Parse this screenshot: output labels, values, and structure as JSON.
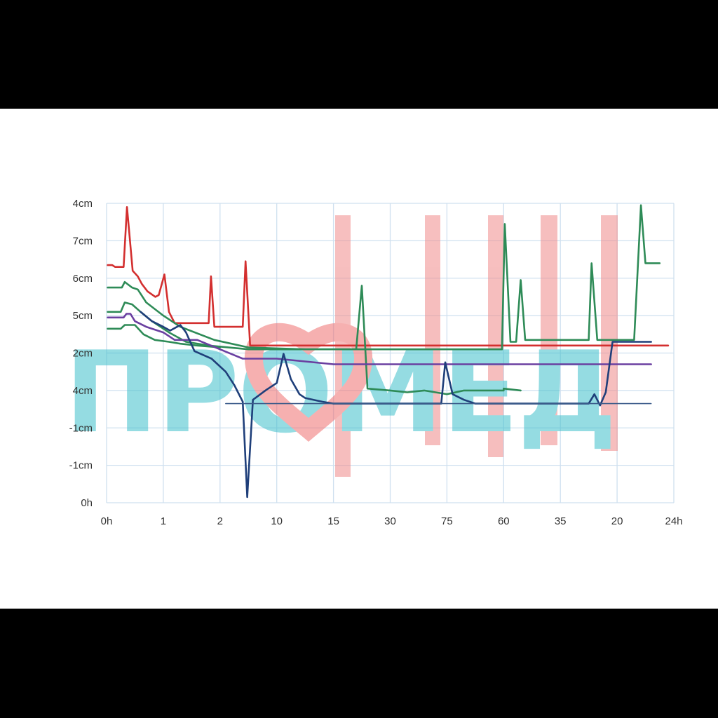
{
  "chart_data": {
    "type": "line",
    "title": "",
    "xlabel": "",
    "ylabel": "",
    "grid": true,
    "x_ticks": [
      "0h",
      "1",
      "2",
      "10",
      "15",
      "30",
      "75",
      "60",
      "35",
      "20",
      "24h"
    ],
    "y_ticks": [
      "4cm",
      "7cm",
      "6cm",
      "5cm",
      "2cm",
      "4cm",
      "-1cm",
      "-1cm",
      "0h"
    ],
    "x_range": [
      0,
      10
    ],
    "y_range": [
      0,
      8
    ],
    "note_axis_units": "x values are tick-index positions (0 = '0h', 10 = '24h'); y values are grid-row positions counted up from the bottom tick '0h' (0) to the top tick '4cm' (8)",
    "series": [
      {
        "color": "#d32f2f",
        "points": [
          [
            0.02,
            6.35
          ],
          [
            0.1,
            6.35
          ],
          [
            0.15,
            6.3
          ],
          [
            0.3,
            6.3
          ],
          [
            0.36,
            7.9
          ],
          [
            0.46,
            6.2
          ],
          [
            0.55,
            6.05
          ],
          [
            0.62,
            5.85
          ],
          [
            0.72,
            5.65
          ],
          [
            0.86,
            5.5
          ],
          [
            0.92,
            5.55
          ],
          [
            1.02,
            6.1
          ],
          [
            1.1,
            5.1
          ],
          [
            1.2,
            4.8
          ],
          [
            1.35,
            4.8
          ],
          [
            1.8,
            4.8
          ],
          [
            1.84,
            6.05
          ],
          [
            1.9,
            4.7
          ],
          [
            2.4,
            4.7
          ],
          [
            2.45,
            6.45
          ],
          [
            2.53,
            4.2
          ],
          [
            3.2,
            4.2
          ],
          [
            4.5,
            4.2
          ],
          [
            6.5,
            4.2
          ],
          [
            8.5,
            4.2
          ],
          [
            9.9,
            4.2
          ]
        ]
      },
      {
        "color": "#2e8b57",
        "points": [
          [
            0.02,
            5.75
          ],
          [
            0.27,
            5.75
          ],
          [
            0.32,
            5.9
          ],
          [
            0.45,
            5.75
          ],
          [
            0.55,
            5.7
          ],
          [
            0.7,
            5.35
          ],
          [
            1.0,
            5.0
          ],
          [
            1.3,
            4.7
          ],
          [
            1.9,
            4.35
          ],
          [
            2.5,
            4.15
          ],
          [
            3.5,
            4.1
          ],
          [
            4.4,
            4.1
          ],
          [
            4.5,
            5.8
          ],
          [
            4.6,
            3.05
          ],
          [
            5.0,
            3.0
          ],
          [
            5.3,
            2.95
          ],
          [
            5.6,
            3.0
          ],
          [
            6.0,
            2.9
          ],
          [
            6.3,
            3.0
          ],
          [
            7.0,
            3.0
          ],
          [
            7.0,
            3.05
          ],
          [
            7.3,
            3.0
          ]
        ]
      },
      {
        "color": "#2e8b57",
        "points": [
          [
            0.02,
            5.1
          ],
          [
            0.25,
            5.1
          ],
          [
            0.32,
            5.35
          ],
          [
            0.45,
            5.3
          ],
          [
            0.6,
            5.1
          ],
          [
            0.8,
            4.85
          ],
          [
            1.1,
            4.55
          ],
          [
            1.4,
            4.3
          ],
          [
            1.8,
            4.2
          ],
          [
            2.5,
            4.1
          ],
          [
            4.5,
            4.1
          ],
          [
            6.0,
            4.1
          ],
          [
            6.97,
            4.1
          ],
          [
            7.02,
            7.45
          ],
          [
            7.12,
            4.3
          ],
          [
            7.22,
            4.3
          ],
          [
            7.3,
            5.95
          ],
          [
            7.38,
            4.35
          ],
          [
            7.6,
            4.35
          ],
          [
            8.5,
            4.35
          ],
          [
            8.55,
            6.4
          ],
          [
            8.65,
            4.35
          ],
          [
            8.85,
            4.35
          ],
          [
            9.3,
            4.35
          ],
          [
            9.42,
            7.95
          ],
          [
            9.5,
            6.4
          ],
          [
            9.75,
            6.4
          ]
        ]
      },
      {
        "color": "#2e8b57",
        "points": [
          [
            0.02,
            4.65
          ],
          [
            0.25,
            4.65
          ],
          [
            0.32,
            4.75
          ],
          [
            0.5,
            4.75
          ],
          [
            0.65,
            4.5
          ],
          [
            0.85,
            4.35
          ],
          [
            1.1,
            4.3
          ],
          [
            1.3,
            4.25
          ],
          [
            1.6,
            4.2
          ],
          [
            2.0,
            4.15
          ]
        ]
      },
      {
        "color": "#6a3fa0",
        "points": [
          [
            0.02,
            4.95
          ],
          [
            0.3,
            4.95
          ],
          [
            0.35,
            5.05
          ],
          [
            0.42,
            5.05
          ],
          [
            0.5,
            4.85
          ],
          [
            0.7,
            4.7
          ],
          [
            1.0,
            4.55
          ],
          [
            1.2,
            4.35
          ],
          [
            1.6,
            4.35
          ],
          [
            2.0,
            4.1
          ],
          [
            2.4,
            3.85
          ],
          [
            3.0,
            3.85
          ],
          [
            4.0,
            3.7
          ],
          [
            5.0,
            3.7
          ],
          [
            6.0,
            3.7
          ],
          [
            7.0,
            3.7
          ],
          [
            8.0,
            3.7
          ],
          [
            9.0,
            3.7
          ],
          [
            9.6,
            3.7
          ]
        ]
      },
      {
        "color": "#1f3f7a",
        "points": [
          [
            0.6,
            5.1
          ],
          [
            0.8,
            4.85
          ],
          [
            1.0,
            4.7
          ],
          [
            1.12,
            4.6
          ],
          [
            1.3,
            4.75
          ],
          [
            1.4,
            4.55
          ],
          [
            1.55,
            4.05
          ],
          [
            1.85,
            3.85
          ],
          [
            2.1,
            3.5
          ],
          [
            2.25,
            3.15
          ],
          [
            2.4,
            2.7
          ],
          [
            2.48,
            0.15
          ],
          [
            2.58,
            2.75
          ],
          [
            2.8,
            3.0
          ],
          [
            3.0,
            3.2
          ],
          [
            3.12,
            3.98
          ],
          [
            3.25,
            3.3
          ],
          [
            3.4,
            2.9
          ],
          [
            3.5,
            2.8
          ],
          [
            3.8,
            2.7
          ],
          [
            4.0,
            2.65
          ],
          [
            5.0,
            2.65
          ],
          [
            5.8,
            2.65
          ],
          [
            5.9,
            2.65
          ],
          [
            5.97,
            3.75
          ],
          [
            6.1,
            2.9
          ],
          [
            6.3,
            2.75
          ],
          [
            6.5,
            2.65
          ],
          [
            7.0,
            2.65
          ],
          [
            8.0,
            2.65
          ],
          [
            8.5,
            2.65
          ],
          [
            8.6,
            2.9
          ],
          [
            8.7,
            2.6
          ],
          [
            8.8,
            2.95
          ],
          [
            8.92,
            4.3
          ],
          [
            9.0,
            4.3
          ],
          [
            9.6,
            4.3
          ]
        ]
      },
      {
        "color": "#3b5b8a",
        "thin": true,
        "points": [
          [
            2.1,
            2.65
          ],
          [
            9.6,
            2.65
          ]
        ]
      }
    ]
  },
  "watermark": {
    "text": "ПРОМЕД",
    "text_color": "#40c0cc",
    "heart_color": "#f07070",
    "bar_color": "#f08a8a"
  }
}
